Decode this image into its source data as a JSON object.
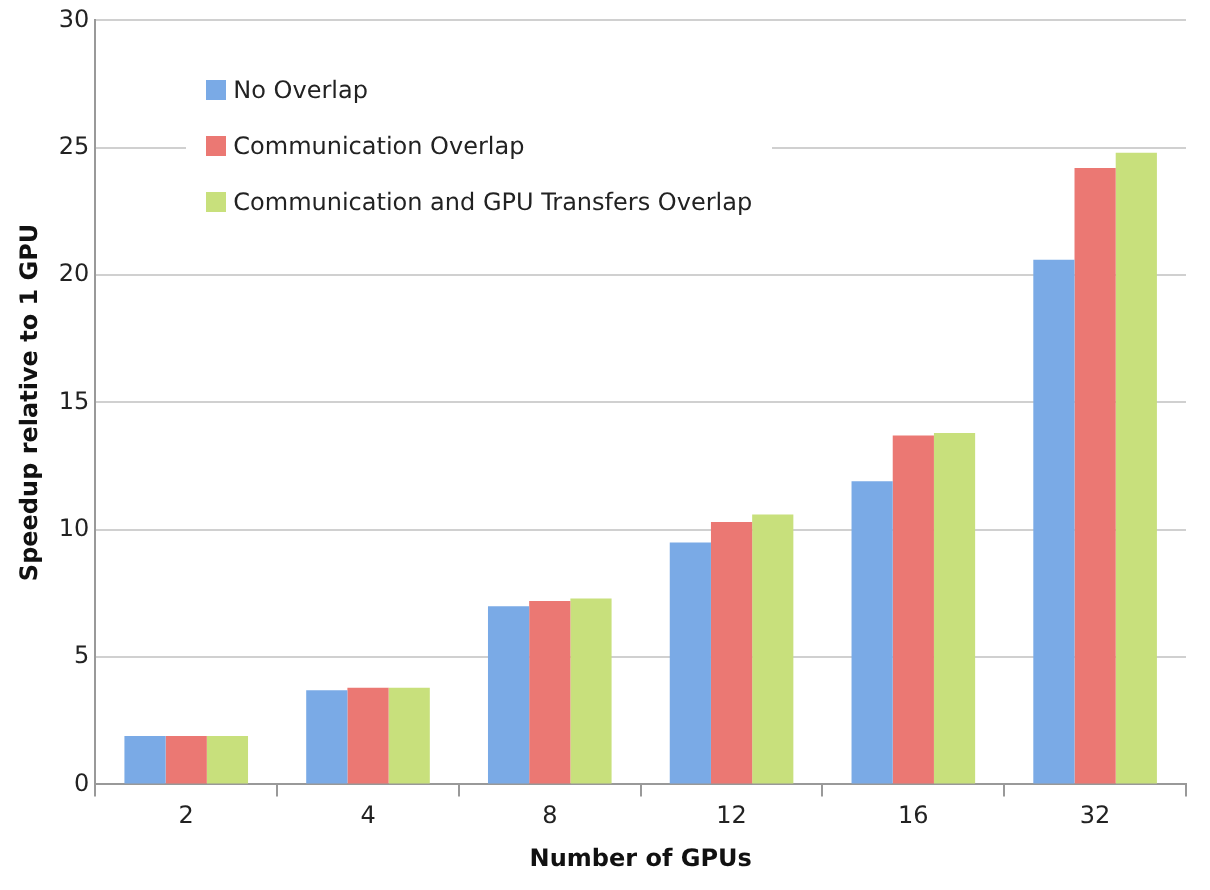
{
  "chart_data": {
    "type": "bar",
    "xlabel": "Number of GPUs",
    "ylabel": "Speedup relative to 1 GPU",
    "categories": [
      "2",
      "4",
      "8",
      "12",
      "16",
      "32"
    ],
    "series": [
      {
        "name": "No Overlap",
        "color": "#7aaae6",
        "values": [
          1.9,
          3.7,
          7.0,
          9.5,
          11.9,
          20.6
        ]
      },
      {
        "name": "Communication Overlap",
        "color": "#eb7873",
        "values": [
          1.9,
          3.8,
          7.2,
          10.3,
          13.7,
          24.2
        ]
      },
      {
        "name": "Communication and GPU Transfers Overlap",
        "color": "#c8e07c",
        "values": [
          1.9,
          3.8,
          7.3,
          10.6,
          13.8,
          24.8
        ]
      }
    ],
    "ylim": [
      0,
      30
    ],
    "yticks": [
      0,
      5,
      10,
      15,
      20,
      25,
      30
    ],
    "grid": "y",
    "legend": "top left"
  }
}
